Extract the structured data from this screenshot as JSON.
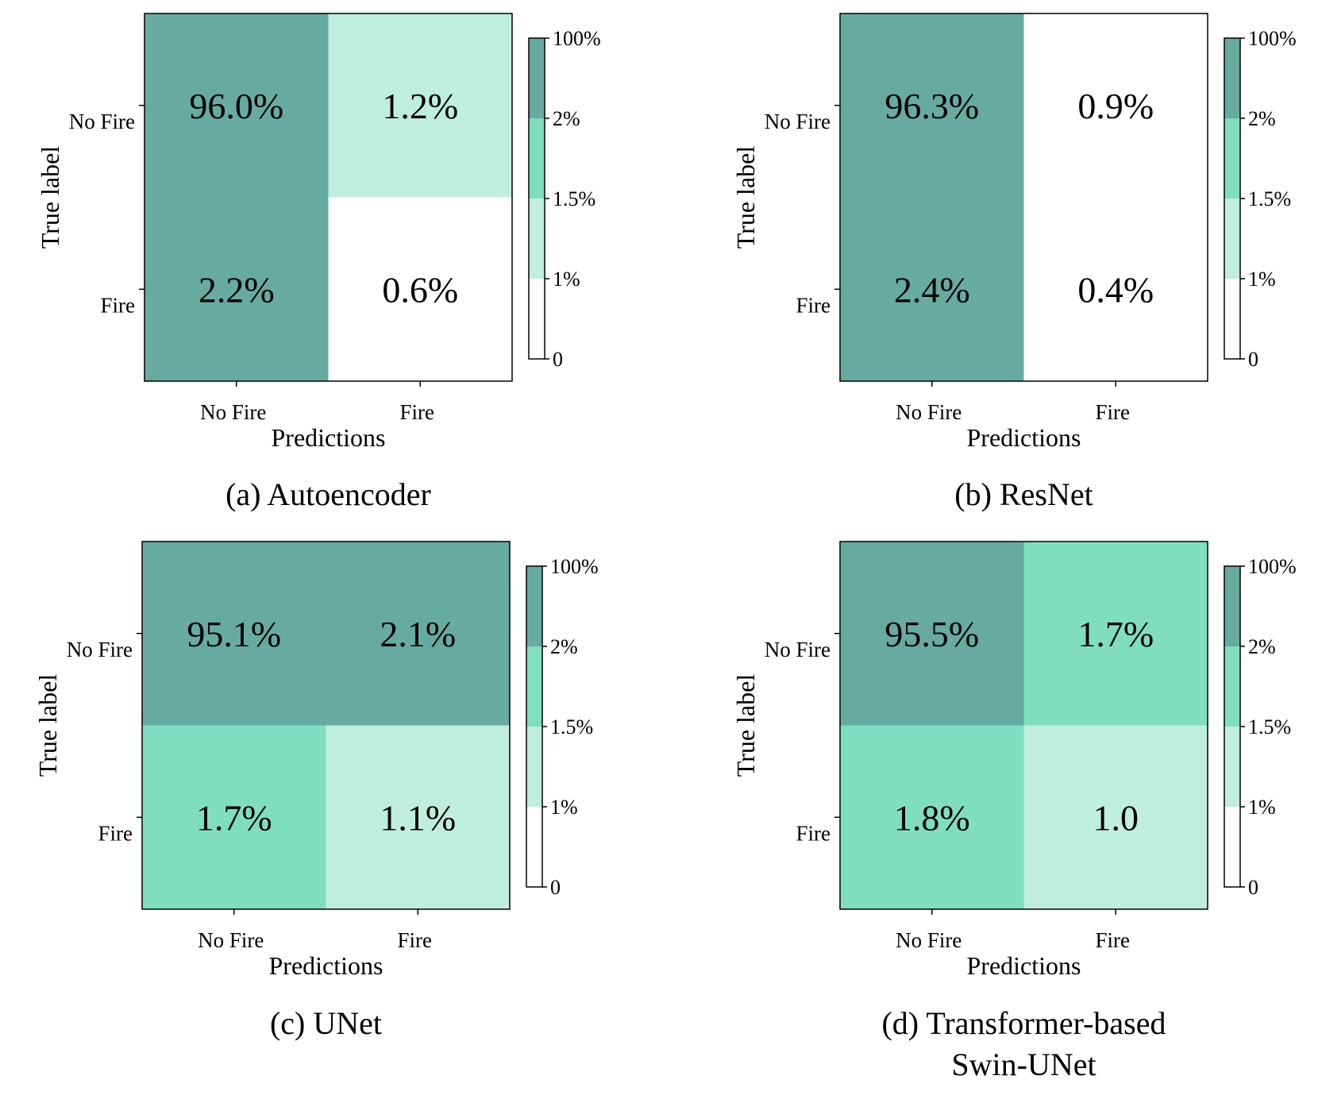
{
  "colors": {
    "level_0": "#ffffff",
    "level_1": "#c0eedc",
    "level_2": "#80dec0",
    "level_3": "#67aba0",
    "frame": "#000000"
  },
  "chart_data": [
    {
      "type": "heatmap",
      "caption": "(a) Autoencoder",
      "xlabel": "Predictions",
      "ylabel": "True label",
      "x_categories": [
        "No Fire",
        "Fire"
      ],
      "y_categories": [
        "No Fire",
        "Fire"
      ],
      "values": [
        [
          96.0,
          1.2
        ],
        [
          2.2,
          0.6
        ]
      ],
      "cell_labels": [
        [
          "96.0%",
          "1.2%"
        ],
        [
          "2.2%",
          "0.6%"
        ]
      ],
      "colorbar": {
        "ticks": [
          "100%",
          "2%",
          "1.5%",
          "1%",
          "0"
        ],
        "boundaries": [
          0,
          1,
          1.5,
          2,
          100
        ]
      }
    },
    {
      "type": "heatmap",
      "caption": "(b) ResNet",
      "xlabel": "Predictions",
      "ylabel": "True label",
      "x_categories": [
        "No Fire",
        "Fire"
      ],
      "y_categories": [
        "No Fire",
        "Fire"
      ],
      "values": [
        [
          96.3,
          0.9
        ],
        [
          2.4,
          0.4
        ]
      ],
      "cell_labels": [
        [
          "96.3%",
          "0.9%"
        ],
        [
          "2.4%",
          "0.4%"
        ]
      ],
      "colorbar": {
        "ticks": [
          "100%",
          "2%",
          "1.5%",
          "1%",
          "0"
        ],
        "boundaries": [
          0,
          1,
          1.5,
          2,
          100
        ]
      }
    },
    {
      "type": "heatmap",
      "caption": "(c) UNet",
      "xlabel": "Predictions",
      "ylabel": "True label",
      "x_categories": [
        "No Fire",
        "Fire"
      ],
      "y_categories": [
        "No Fire",
        "Fire"
      ],
      "values": [
        [
          95.1,
          2.1
        ],
        [
          1.7,
          1.1
        ]
      ],
      "cell_labels": [
        [
          "95.1%",
          "2.1%"
        ],
        [
          "1.7%",
          "1.1%"
        ]
      ],
      "colorbar": {
        "ticks": [
          "100%",
          "2%",
          "1.5%",
          "1%",
          "0"
        ],
        "boundaries": [
          0,
          1,
          1.5,
          2,
          100
        ]
      }
    },
    {
      "type": "heatmap",
      "caption": [
        "(d) Transformer-based",
        "Swin-UNet"
      ],
      "xlabel": "Predictions",
      "ylabel": "True label",
      "x_categories": [
        "No Fire",
        "Fire"
      ],
      "y_categories": [
        "No Fire",
        "Fire"
      ],
      "values": [
        [
          95.5,
          1.7
        ],
        [
          1.8,
          1.0
        ]
      ],
      "cell_labels": [
        [
          "95.5%",
          "1.7%"
        ],
        [
          "1.8%",
          "1.0"
        ]
      ],
      "colorbar": {
        "ticks": [
          "100%",
          "2%",
          "1.5%",
          "1%",
          "0"
        ],
        "boundaries": [
          0,
          1,
          1.5,
          2,
          100
        ]
      }
    }
  ]
}
